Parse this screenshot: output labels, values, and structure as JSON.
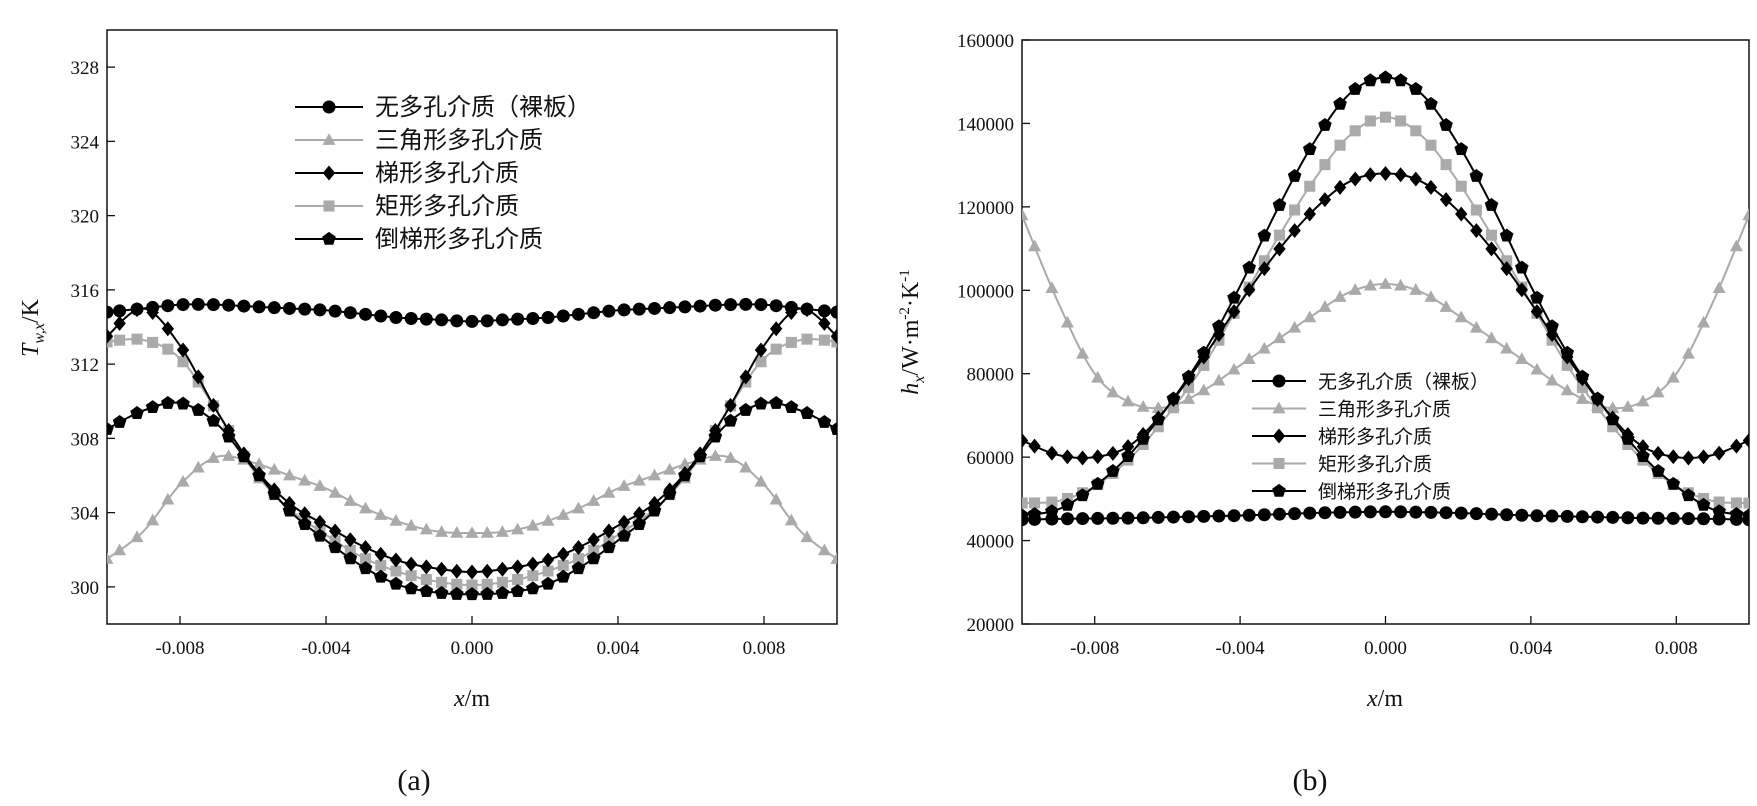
{
  "chart_data": [
    {
      "type": "line",
      "panel_label": "(a)",
      "x_label_var": "x",
      "x_label_unit": "/m",
      "y_label_var": "T",
      "y_label_sub": "w,x",
      "y_label_unit": "/K",
      "xlim": [
        -0.01,
        0.01
      ],
      "ylim": [
        298,
        330
      ],
      "xticks": [
        -0.008,
        -0.004,
        0.0,
        0.004,
        0.008
      ],
      "xtick_labels": [
        "-0.008",
        "-0.004",
        "0.000",
        "0.004",
        "0.008"
      ],
      "yticks": [
        300,
        304,
        308,
        312,
        316,
        320,
        324,
        328
      ],
      "ytick_labels": [
        "300",
        "304",
        "308",
        "312",
        "316",
        "320",
        "324",
        "328"
      ],
      "legend_position": "upper-center",
      "x": [
        -0.01,
        -0.009,
        -0.008,
        -0.007,
        -0.006,
        -0.005,
        -0.004,
        -0.003,
        -0.002,
        -0.001,
        0.0,
        0.001,
        0.002,
        0.003,
        0.004,
        0.005,
        0.006,
        0.007,
        0.008,
        0.009,
        0.01
      ],
      "series": [
        {
          "name": "无多孔介质（裸板）",
          "color": "#000000",
          "marker": "circle",
          "values": [
            314.8,
            315.0,
            315.2,
            315.2,
            315.1,
            315.0,
            314.9,
            314.7,
            314.5,
            314.4,
            314.3,
            314.4,
            314.5,
            314.7,
            314.9,
            315.0,
            315.1,
            315.2,
            315.2,
            315.0,
            314.8
          ]
        },
        {
          "name": "三角形多孔介质",
          "color": "#aaaaaa",
          "marker": "triangle",
          "values": [
            301.5,
            303.0,
            305.5,
            307.0,
            306.7,
            306.0,
            305.3,
            304.3,
            303.5,
            303.0,
            302.9,
            303.0,
            303.5,
            304.3,
            305.3,
            306.0,
            306.7,
            307.0,
            305.5,
            303.0,
            301.5
          ]
        },
        {
          "name": "梯形多孔介质",
          "color": "#000000",
          "marker": "diamond",
          "values": [
            313.5,
            315.0,
            313.0,
            309.5,
            306.5,
            304.5,
            303.3,
            302.2,
            301.4,
            301.0,
            300.8,
            301.0,
            301.4,
            302.2,
            303.3,
            304.5,
            306.5,
            309.5,
            313.0,
            315.0,
            313.5
          ]
        },
        {
          "name": "矩形多孔介质",
          "color": "#aaaaaa",
          "marker": "square",
          "values": [
            313.2,
            313.3,
            312.3,
            309.5,
            306.3,
            304.2,
            302.8,
            301.6,
            300.8,
            300.3,
            300.1,
            300.3,
            300.8,
            301.6,
            302.8,
            304.2,
            306.3,
            309.5,
            312.3,
            313.3,
            313.2
          ]
        },
        {
          "name": "倒梯形多孔介质",
          "color": "#000000",
          "marker": "pentagon",
          "values": [
            308.5,
            309.5,
            309.9,
            308.8,
            306.4,
            304.1,
            302.5,
            301.1,
            300.1,
            299.7,
            299.6,
            299.7,
            300.1,
            301.1,
            302.5,
            304.1,
            306.4,
            308.8,
            309.9,
            309.5,
            308.5
          ]
        }
      ]
    },
    {
      "type": "line",
      "panel_label": "(b)",
      "x_label_var": "x",
      "x_label_unit": "/m",
      "y_label_var": "h",
      "y_label_sub": "x",
      "y_label_unit": "/W·m",
      "y_label_sup1": "-2",
      "y_label_unit2": "·K",
      "y_label_sup2": "-1",
      "xlim": [
        -0.01,
        0.01
      ],
      "ylim": [
        20000,
        160000
      ],
      "xticks": [
        -0.008,
        -0.004,
        0.0,
        0.004,
        0.008
      ],
      "xtick_labels": [
        "-0.008",
        "-0.004",
        "0.000",
        "0.004",
        "0.008"
      ],
      "yticks": [
        20000,
        40000,
        60000,
        80000,
        100000,
        120000,
        140000,
        160000
      ],
      "ytick_labels": [
        "20000",
        "40000",
        "60000",
        "80000",
        "100000",
        "120000",
        "140000",
        "160000"
      ],
      "legend_position": "lower-center",
      "x": [
        -0.01,
        -0.009,
        -0.008,
        -0.007,
        -0.006,
        -0.005,
        -0.004,
        -0.003,
        -0.002,
        -0.001,
        0.0,
        0.001,
        0.002,
        0.003,
        0.004,
        0.005,
        0.006,
        0.007,
        0.008,
        0.009,
        0.01
      ],
      "series": [
        {
          "name": "无多孔介质（裸板）",
          "color": "#000000",
          "marker": "circle",
          "values": [
            45000,
            45200,
            45300,
            45400,
            45600,
            45800,
            46000,
            46300,
            46600,
            46800,
            46900,
            46800,
            46600,
            46300,
            46000,
            45800,
            45600,
            45400,
            45300,
            45200,
            45000
          ]
        },
        {
          "name": "三角形多孔介质",
          "color": "#aaaaaa",
          "marker": "triangle",
          "values": [
            118000,
            97000,
            80000,
            73000,
            72000,
            76000,
            82000,
            88000,
            94000,
            99500,
            101500,
            99500,
            94000,
            88000,
            82000,
            76000,
            72000,
            73000,
            80000,
            97000,
            118000
          ]
        },
        {
          "name": "梯形多孔介质",
          "color": "#000000",
          "marker": "diamond",
          "values": [
            64000,
            60500,
            60000,
            63000,
            72000,
            84000,
            97000,
            109000,
            119000,
            126000,
            128000,
            126000,
            119000,
            109000,
            97000,
            84000,
            72000,
            63000,
            60000,
            60500,
            64000
          ]
        },
        {
          "name": "矩形多孔介质",
          "color": "#aaaaaa",
          "marker": "square",
          "values": [
            49000,
            49500,
            53000,
            60000,
            70000,
            82000,
            97000,
            112000,
            126000,
            137000,
            141500,
            137000,
            126000,
            112000,
            97000,
            82000,
            70000,
            60000,
            53000,
            49500,
            49000
          ]
        },
        {
          "name": "倒梯形多孔介质",
          "color": "#000000",
          "marker": "pentagon",
          "values": [
            46000,
            47500,
            53000,
            61000,
            72000,
            85000,
            101000,
            119000,
            135000,
            147000,
            151000,
            147000,
            135000,
            119000,
            101000,
            85000,
            72000,
            61000,
            53000,
            47500,
            46000
          ]
        }
      ]
    }
  ]
}
